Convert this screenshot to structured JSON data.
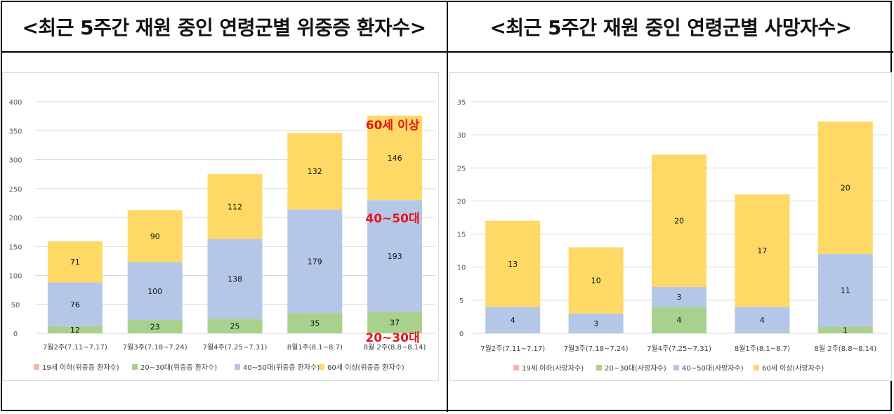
{
  "panels": {
    "left_title": "<최근 5주간 재원 중인 연령군별 위중증 환자수>",
    "right_title": "<최근 5주간 재원 중인 연령군별 사망자수>"
  },
  "annotations": {
    "age60": "60세 이상",
    "age4050": "40~50대",
    "age2030": "20~30대"
  },
  "colors": {
    "under19": "#f4b6a8",
    "age20_30": "#a9d18e",
    "age40_50": "#b4c7e7",
    "age60plus": "#ffd966",
    "annotation": "#e8141b"
  },
  "chart_data": [
    {
      "type": "bar",
      "stacked": true,
      "categories": [
        "7월2주(7.11~7.17)",
        "7월3주(7.18~7.24)",
        "7월4주(7.25~7.31)",
        "8월1주(8.1~8.7)",
        "8월 2주(8.8~8.14)"
      ],
      "series": [
        {
          "name": "19세 이하(위중증 환자수)",
          "values": [
            0,
            0,
            0,
            0,
            0
          ],
          "labels": [
            "",
            "",
            "",
            "",
            ""
          ]
        },
        {
          "name": "20~30대(위중증 환자수)",
          "values": [
            12,
            23,
            25,
            35,
            37
          ],
          "labels": [
            "12",
            "23",
            "25",
            "35",
            "37"
          ]
        },
        {
          "name": "40~50대(위중증 환자수)",
          "values": [
            76,
            100,
            138,
            179,
            193
          ],
          "labels": [
            "76",
            "100",
            "138",
            "179",
            "193"
          ]
        },
        {
          "name": "60세 이상(위중증 환자수)",
          "values": [
            71,
            90,
            112,
            132,
            146
          ],
          "labels": [
            "71",
            "90",
            "112",
            "132",
            "146"
          ]
        }
      ],
      "ylim": [
        0,
        400
      ],
      "yticks": [
        "0",
        "50",
        "100",
        "150",
        "200",
        "250",
        "300",
        "350",
        "400"
      ],
      "grid": true,
      "legend_position": "bottom"
    },
    {
      "type": "bar",
      "stacked": true,
      "categories": [
        "7월2주(7.11~7.17)",
        "7월3주(7.18~7.24)",
        "7월4주(7.25~7.31)",
        "8월1주(8.1~8.7)",
        "8월 2주(8.8~8.14)"
      ],
      "series": [
        {
          "name": "19세 이하(사망자수)",
          "values": [
            0,
            0,
            0,
            0,
            0
          ],
          "labels": [
            "",
            "",
            "",
            "",
            ""
          ]
        },
        {
          "name": "20~30대(사망자수)",
          "values": [
            0,
            0,
            4,
            0,
            1
          ],
          "labels": [
            "",
            "",
            "4",
            "",
            "1"
          ]
        },
        {
          "name": "40~50대(사망자수)",
          "values": [
            4,
            3,
            3,
            4,
            11
          ],
          "labels": [
            "4",
            "3",
            "3",
            "4",
            "11"
          ]
        },
        {
          "name": "60세 이상(사망자수)",
          "values": [
            13,
            10,
            20,
            17,
            20
          ],
          "labels": [
            "13",
            "10",
            "20",
            "17",
            "20"
          ]
        }
      ],
      "ylim": [
        0,
        35
      ],
      "yticks": [
        "0",
        "5",
        "10",
        "15",
        "20",
        "25",
        "30",
        "35"
      ],
      "grid": true,
      "legend_position": "bottom"
    }
  ]
}
